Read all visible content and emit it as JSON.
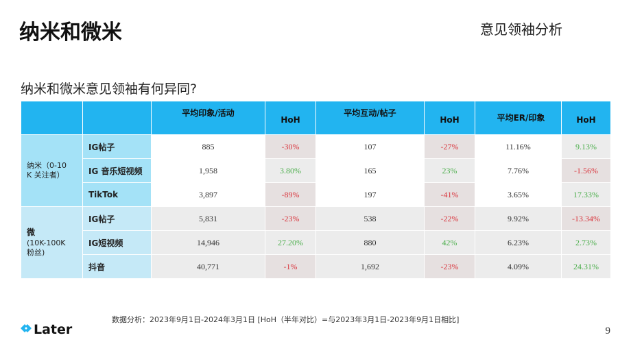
{
  "header": {
    "title": "纳米和微米",
    "section": "意见领袖分析"
  },
  "question": "纳米和微米意见领袖有何异同?",
  "table": {
    "columns": [
      "平均印象/活动",
      "HoH",
      "平均互动/帖子",
      "HoH",
      "平均ER/印象",
      "HoH"
    ],
    "groups": [
      {
        "label_lines": [
          "纳米（0-10",
          "K 关注者）"
        ],
        "rows": [
          {
            "platform": "IG帖子",
            "values": [
              "885",
              "-30%",
              "107",
              "-27%",
              "11.16%",
              "9.13%"
            ]
          },
          {
            "platform": "IG 音乐短视频",
            "values": [
              "1,958",
              "3.80%",
              "165",
              "23%",
              "7.76%",
              "-1.56%"
            ]
          },
          {
            "platform": "TikTok",
            "values": [
              "3,897",
              "-89%",
              "197",
              "-41%",
              "3.65%",
              "17.33%"
            ]
          }
        ]
      },
      {
        "label_bold": "微",
        "label_lines": [
          "(10K-100K",
          "粉丝)"
        ],
        "rows": [
          {
            "platform": "IG帖子",
            "values": [
              "5,831",
              "-23%",
              "538",
              "-22%",
              "9.92%",
              "-13.34%"
            ]
          },
          {
            "platform": "IG短视频",
            "values": [
              "14,946",
              "27.20%",
              "880",
              "42%",
              "6.23%",
              "2.73%"
            ]
          },
          {
            "platform": "抖音",
            "values": [
              "40,771",
              "-1%",
              "1,692",
              "-23%",
              "4.09%",
              "24.31%"
            ]
          }
        ]
      }
    ]
  },
  "source": "数据分析：2023年9月1日-2024年3月1日 [HoH（半年对比）=与2023年3月1日-2023年9月1日相比]",
  "logo": {
    "text": "Later",
    "icon": "later-logo-icon",
    "color": "#22b4f0"
  },
  "page_number": "9",
  "colors": {
    "header_blue": "#22b4f0",
    "negative": "#d9363e",
    "positive": "#4cae4c"
  }
}
